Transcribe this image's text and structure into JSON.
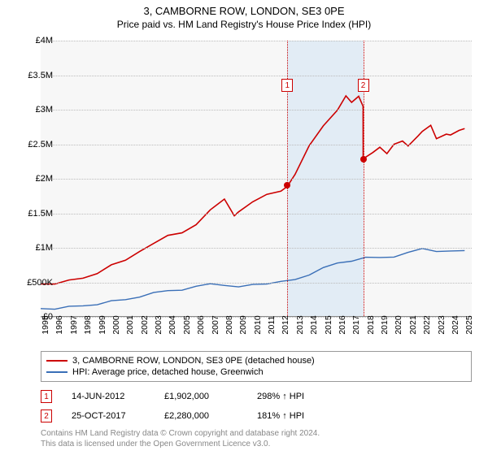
{
  "title": "3, CAMBORNE ROW, LONDON, SE3 0PE",
  "subtitle": "Price paid vs. HM Land Registry's House Price Index (HPI)",
  "chart": {
    "type": "line",
    "background_color": "#f7f7f7",
    "grid_color": "#bbbbbb",
    "shaded_color": "#dce8f4",
    "x_start": 1995,
    "x_end": 2025.5,
    "xticks": [
      1995,
      1996,
      1997,
      1998,
      1999,
      2000,
      2001,
      2002,
      2003,
      2004,
      2005,
      2006,
      2007,
      2008,
      2009,
      2010,
      2011,
      2012,
      2013,
      2014,
      2015,
      2016,
      2017,
      2018,
      2019,
      2020,
      2021,
      2022,
      2023,
      2024,
      2025
    ],
    "ylim": [
      0,
      4000000
    ],
    "yticks": [
      {
        "v": 0,
        "label": "£0"
      },
      {
        "v": 500000,
        "label": "£500K"
      },
      {
        "v": 1000000,
        "label": "£1M"
      },
      {
        "v": 1500000,
        "label": "£1.5M"
      },
      {
        "v": 2000000,
        "label": "£2M"
      },
      {
        "v": 2500000,
        "label": "£2.5M"
      },
      {
        "v": 3000000,
        "label": "£3M"
      },
      {
        "v": 3500000,
        "label": "£3.5M"
      },
      {
        "v": 4000000,
        "label": "£4M"
      }
    ],
    "shaded_from": 2012.45,
    "shaded_to": 2017.82,
    "series": [
      {
        "id": "subject",
        "color": "#cc0000",
        "width": 1.6,
        "points": [
          [
            1995,
            478000
          ],
          [
            1996,
            490000
          ],
          [
            1997,
            520000
          ],
          [
            1998,
            560000
          ],
          [
            1999,
            640000
          ],
          [
            2000,
            740000
          ],
          [
            2001,
            820000
          ],
          [
            2002,
            960000
          ],
          [
            2003,
            1050000
          ],
          [
            2004,
            1180000
          ],
          [
            2005,
            1230000
          ],
          [
            2006,
            1320000
          ],
          [
            2007,
            1550000
          ],
          [
            2008,
            1720000
          ],
          [
            2008.7,
            1450000
          ],
          [
            2009,
            1520000
          ],
          [
            2010,
            1680000
          ],
          [
            2011,
            1760000
          ],
          [
            2012,
            1820000
          ],
          [
            2012.45,
            1902000
          ],
          [
            2013,
            2050000
          ],
          [
            2014,
            2480000
          ],
          [
            2015,
            2780000
          ],
          [
            2016,
            2980000
          ],
          [
            2016.6,
            3200000
          ],
          [
            2017,
            3120000
          ],
          [
            2017.5,
            3180000
          ],
          [
            2017.81,
            3050000
          ],
          [
            2017.82,
            2280000
          ],
          [
            2018,
            2300000
          ],
          [
            2018.5,
            2380000
          ],
          [
            2019,
            2470000
          ],
          [
            2019.5,
            2350000
          ],
          [
            2020,
            2500000
          ],
          [
            2020.6,
            2560000
          ],
          [
            2021,
            2460000
          ],
          [
            2021.7,
            2620000
          ],
          [
            2022,
            2700000
          ],
          [
            2022.6,
            2760000
          ],
          [
            2023,
            2580000
          ],
          [
            2023.7,
            2660000
          ],
          [
            2024,
            2620000
          ],
          [
            2024.6,
            2700000
          ],
          [
            2025,
            2740000
          ]
        ]
      },
      {
        "id": "hpi",
        "color": "#3a6fb7",
        "width": 1.4,
        "points": [
          [
            1995,
            120000
          ],
          [
            1996,
            125000
          ],
          [
            1997,
            140000
          ],
          [
            1998,
            160000
          ],
          [
            1999,
            190000
          ],
          [
            2000,
            220000
          ],
          [
            2001,
            250000
          ],
          [
            2002,
            300000
          ],
          [
            2003,
            340000
          ],
          [
            2004,
            380000
          ],
          [
            2005,
            400000
          ],
          [
            2006,
            430000
          ],
          [
            2007,
            480000
          ],
          [
            2008,
            470000
          ],
          [
            2009,
            420000
          ],
          [
            2010,
            470000
          ],
          [
            2011,
            490000
          ],
          [
            2012,
            500000
          ],
          [
            2013,
            540000
          ],
          [
            2014,
            620000
          ],
          [
            2015,
            700000
          ],
          [
            2016,
            780000
          ],
          [
            2017,
            820000
          ],
          [
            2018,
            850000
          ],
          [
            2019,
            860000
          ],
          [
            2020,
            880000
          ],
          [
            2021,
            920000
          ],
          [
            2022,
            990000
          ],
          [
            2023,
            960000
          ],
          [
            2024,
            940000
          ],
          [
            2025,
            960000
          ]
        ]
      }
    ],
    "sale_markers": [
      {
        "n": "1",
        "x": 2012.45,
        "y": 1902000,
        "box_y": 3450000
      },
      {
        "n": "2",
        "x": 2017.82,
        "y": 2280000,
        "box_y": 3450000
      }
    ]
  },
  "legend": {
    "items": [
      {
        "color": "#cc0000",
        "label": "3, CAMBORNE ROW, LONDON, SE3 0PE (detached house)"
      },
      {
        "color": "#3a6fb7",
        "label": "HPI: Average price, detached house, Greenwich"
      }
    ]
  },
  "sales": [
    {
      "n": "1",
      "date": "14-JUN-2012",
      "price": "£1,902,000",
      "pct": "298% ↑ HPI"
    },
    {
      "n": "2",
      "date": "25-OCT-2017",
      "price": "£2,280,000",
      "pct": "181% ↑ HPI"
    }
  ],
  "copyright": {
    "line1": "Contains HM Land Registry data © Crown copyright and database right 2024.",
    "line2": "This data is licensed under the Open Government Licence v3.0."
  }
}
